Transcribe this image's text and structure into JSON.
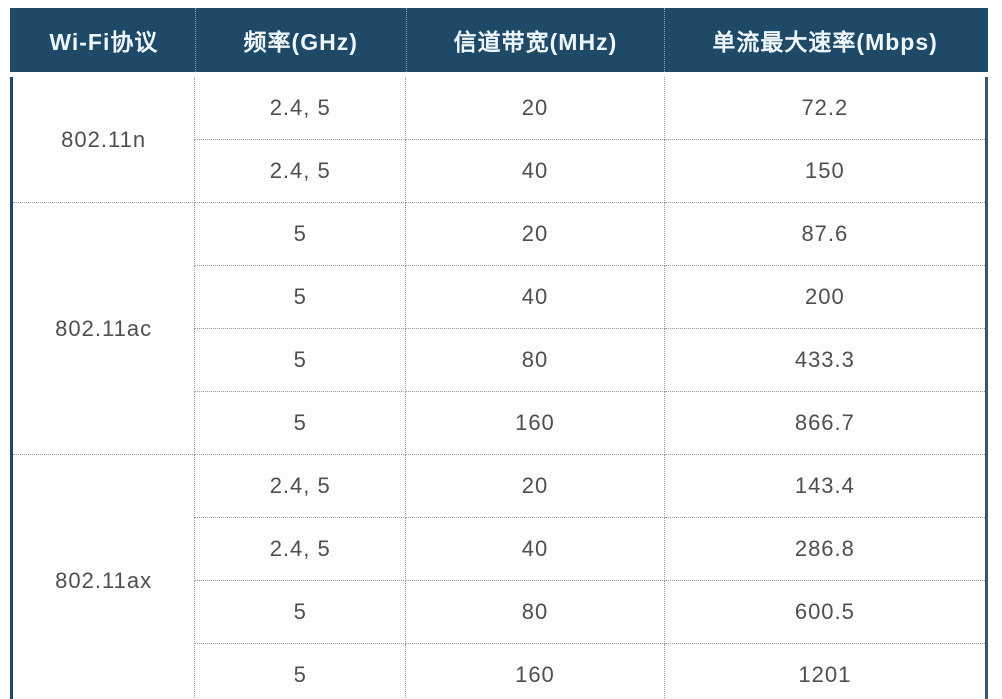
{
  "table": {
    "columns": [
      "Wi-Fi协议",
      "频率(GHz)",
      "信道带宽(MHz)",
      "单流最大速率(Mbps)"
    ],
    "groups": [
      {
        "protocol": "802.11n",
        "rows": [
          {
            "freq": "2.4, 5",
            "bandwidth": "20",
            "rate": "72.2"
          },
          {
            "freq": "2.4, 5",
            "bandwidth": "40",
            "rate": "150"
          }
        ]
      },
      {
        "protocol": "802.11ac",
        "rows": [
          {
            "freq": "5",
            "bandwidth": "20",
            "rate": "87.6"
          },
          {
            "freq": "5",
            "bandwidth": "40",
            "rate": "200"
          },
          {
            "freq": "5",
            "bandwidth": "80",
            "rate": "433.3"
          },
          {
            "freq": "5",
            "bandwidth": "160",
            "rate": "866.7"
          }
        ]
      },
      {
        "protocol": "802.11ax",
        "rows": [
          {
            "freq": "2.4, 5",
            "bandwidth": "20",
            "rate": "143.4"
          },
          {
            "freq": "2.4, 5",
            "bandwidth": "40",
            "rate": "286.8"
          },
          {
            "freq": "5",
            "bandwidth": "80",
            "rate": "600.5"
          },
          {
            "freq": "5",
            "bandwidth": "160",
            "rate": "1201"
          }
        ]
      }
    ]
  },
  "colors": {
    "header_bg": "#1e4a68",
    "header_text": "#eff6fa",
    "body_text": "#4f4f4f",
    "dotted_border": "#9b9b9b",
    "outer_border": "#1e4a68"
  },
  "chart_data": {
    "type": "table",
    "title": "Wi-Fi protocol speed comparison",
    "columns": [
      "Wi-Fi协议",
      "频率(GHz)",
      "信道带宽(MHz)",
      "单流最大速率(Mbps)"
    ],
    "rows": [
      [
        "802.11n",
        "2.4, 5",
        20,
        72.2
      ],
      [
        "802.11n",
        "2.4, 5",
        40,
        150
      ],
      [
        "802.11ac",
        "5",
        20,
        87.6
      ],
      [
        "802.11ac",
        "5",
        40,
        200
      ],
      [
        "802.11ac",
        "5",
        80,
        433.3
      ],
      [
        "802.11ac",
        "5",
        160,
        866.7
      ],
      [
        "802.11ax",
        "2.4, 5",
        20,
        143.4
      ],
      [
        "802.11ax",
        "2.4, 5",
        40,
        286.8
      ],
      [
        "802.11ax",
        "5",
        80,
        600.5
      ],
      [
        "802.11ax",
        "5",
        160,
        1201
      ]
    ]
  }
}
